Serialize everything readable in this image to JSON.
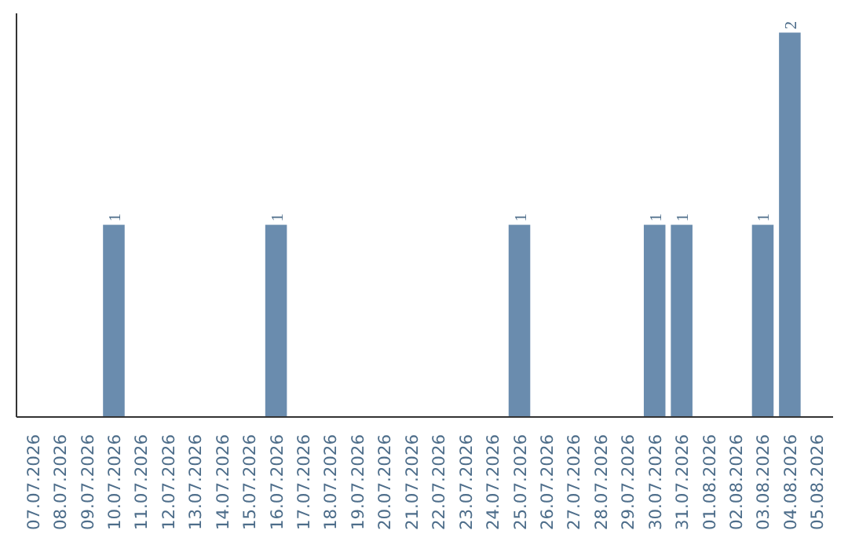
{
  "chart_data": {
    "type": "bar",
    "categories": [
      "07.07.2026",
      "08.07.2026",
      "09.07.2026",
      "10.07.2026",
      "11.07.2026",
      "12.07.2026",
      "13.07.2026",
      "14.07.2026",
      "15.07.2026",
      "16.07.2026",
      "17.07.2026",
      "18.07.2026",
      "19.07.2026",
      "20.07.2026",
      "21.07.2026",
      "22.07.2026",
      "23.07.2026",
      "24.07.2026",
      "25.07.2026",
      "26.07.2026",
      "27.07.2026",
      "28.07.2026",
      "29.07.2026",
      "30.07.2026",
      "31.07.2026",
      "01.08.2026",
      "02.08.2026",
      "03.08.2026",
      "04.08.2026",
      "05.08.2026"
    ],
    "values": [
      0,
      0,
      0,
      1,
      0,
      0,
      0,
      0,
      0,
      1,
      0,
      0,
      0,
      0,
      0,
      0,
      0,
      0,
      1,
      0,
      0,
      0,
      0,
      1,
      1,
      0,
      0,
      1,
      2,
      0
    ],
    "value_labels": [
      null,
      null,
      null,
      "1",
      null,
      null,
      null,
      null,
      null,
      "1",
      null,
      null,
      null,
      null,
      null,
      null,
      null,
      null,
      "1",
      null,
      null,
      null,
      null,
      "1",
      "1",
      null,
      null,
      "1",
      "2",
      null
    ],
    "color": "#6a8cae",
    "grid": false,
    "tick_labels": "x"
  }
}
